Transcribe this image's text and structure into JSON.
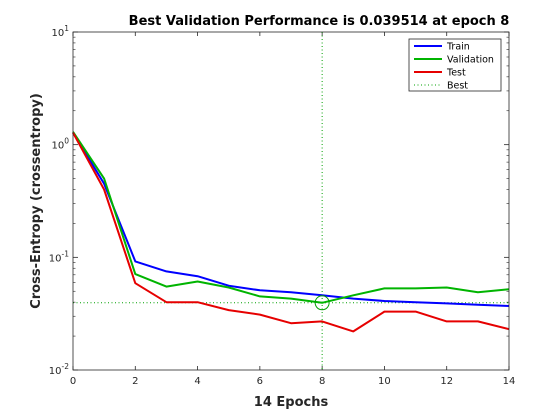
{
  "chart_data": {
    "type": "line",
    "title": "Best Validation Performance is 0.039514 at epoch 8",
    "xlabel": "14 Epochs",
    "ylabel": "Cross-Entropy  (crossentropy)",
    "xlim": [
      0,
      14
    ],
    "ylim": [
      0.01,
      10
    ],
    "yscale": "log",
    "x_ticks": [
      0,
      2,
      4,
      6,
      8,
      10,
      12,
      14
    ],
    "y_ticks": [
      {
        "base": "10",
        "exp": "-2",
        "value": 0.01
      },
      {
        "base": "10",
        "exp": "-1",
        "value": 0.1
      },
      {
        "base": "10",
        "exp": "0",
        "value": 1
      },
      {
        "base": "10",
        "exp": "1",
        "value": 10
      }
    ],
    "x": [
      0,
      1,
      2,
      3,
      4,
      5,
      6,
      7,
      8,
      9,
      10,
      11,
      12,
      13,
      14
    ],
    "series": [
      {
        "name": "Train",
        "color": "#0000ff",
        "values": [
          1.28,
          0.45,
          0.092,
          0.075,
          0.068,
          0.056,
          0.051,
          0.049,
          0.046,
          0.043,
          0.041,
          0.04,
          0.039,
          0.038,
          0.037
        ]
      },
      {
        "name": "Validation",
        "color": "#00b400",
        "values": [
          1.3,
          0.5,
          0.071,
          0.055,
          0.061,
          0.054,
          0.045,
          0.043,
          0.0395,
          0.046,
          0.053,
          0.053,
          0.054,
          0.049,
          0.052
        ]
      },
      {
        "name": "Test",
        "color": "#e60000",
        "values": [
          1.28,
          0.4,
          0.059,
          0.04,
          0.04,
          0.034,
          0.031,
          0.026,
          0.027,
          0.022,
          0.033,
          0.033,
          0.027,
          0.027,
          0.023
        ]
      }
    ],
    "best": {
      "name": "Best",
      "epoch": 8,
      "value": 0.039514,
      "color": "#00a000"
    },
    "legend_position": "top-right",
    "grid": false
  }
}
